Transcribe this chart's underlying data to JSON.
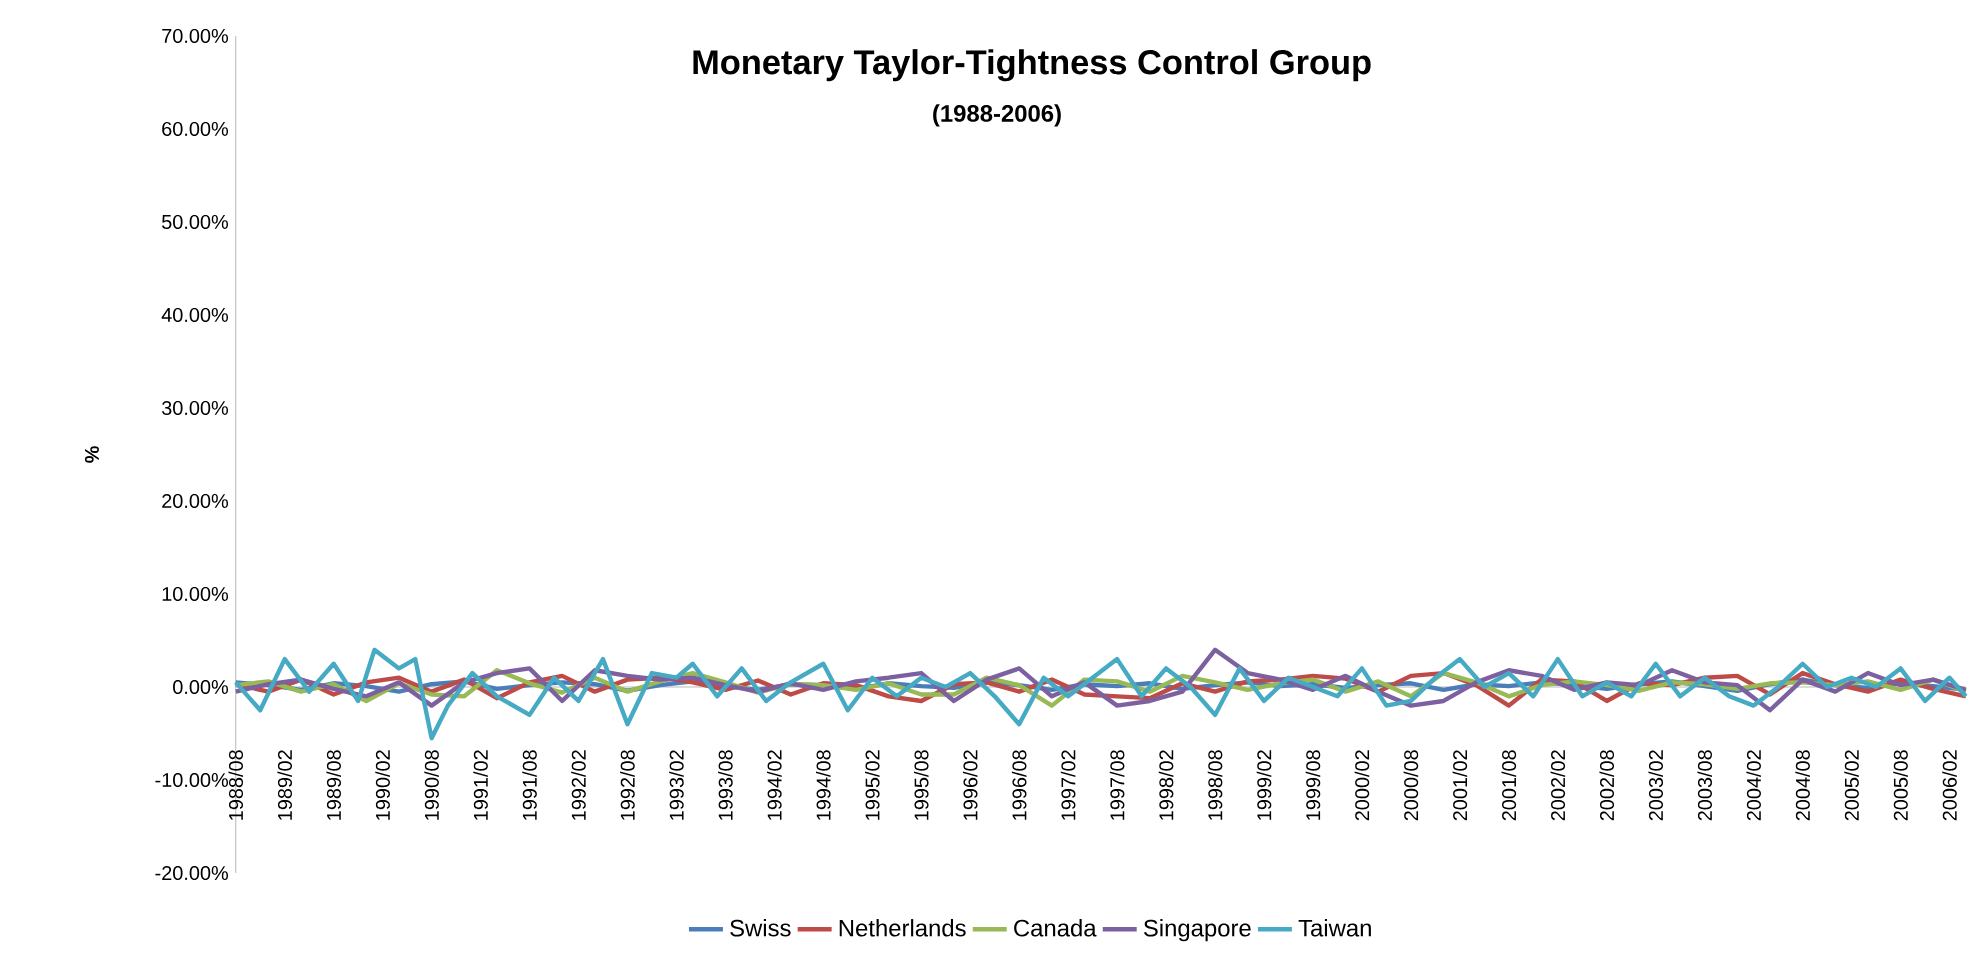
{
  "chart_data": {
    "type": "line",
    "title": "Monetary Taylor-Tightness   Control Group",
    "subtitle": "(1988-2006)",
    "ylabel": "%",
    "legend": "bottom",
    "marker": "none",
    "line_style": "solid",
    "x": [
      "1988-08",
      "1988-12",
      "1989-04",
      "1989-08",
      "1989-12",
      "1990-04",
      "1990-08",
      "1990-12",
      "1991-04",
      "1991-08",
      "1991-12",
      "1992-04",
      "1992-08",
      "1992-12",
      "1993-04",
      "1993-08",
      "1993-12",
      "1994-04",
      "1994-08",
      "1994-12",
      "1995-04",
      "1995-08",
      "1995-12",
      "1996-04",
      "1996-08",
      "1996-12",
      "1997-04",
      "1997-08",
      "1997-12",
      "1998-04",
      "1998-08",
      "1998-12",
      "1999-04",
      "1999-08",
      "1999-12",
      "2000-04",
      "2000-08",
      "2000-12",
      "2001-04",
      "2001-08",
      "2001-12",
      "2002-04",
      "2002-08",
      "2002-12",
      "2003-04",
      "2003-08",
      "2003-12",
      "2004-04",
      "2004-08",
      "2004-12",
      "2005-04",
      "2005-08",
      "2005-12",
      "2006-04"
    ],
    "xlim": [
      "1988-08",
      "2006-04"
    ],
    "xticks": [
      {
        "value": "1988-08",
        "label": "1988/08"
      },
      {
        "value": "1989-02",
        "label": "1989/02"
      },
      {
        "value": "1989-08",
        "label": "1989/08"
      },
      {
        "value": "1990-02",
        "label": "1990/02"
      },
      {
        "value": "1990-08",
        "label": "1990/08"
      },
      {
        "value": "1991-02",
        "label": "1991/02"
      },
      {
        "value": "1991-08",
        "label": "1991/08"
      },
      {
        "value": "1992-02",
        "label": "1992/02"
      },
      {
        "value": "1992-08",
        "label": "1992/08"
      },
      {
        "value": "1993-02",
        "label": "1993/02"
      },
      {
        "value": "1993-08",
        "label": "1993/08"
      },
      {
        "value": "1994-02",
        "label": "1994/02"
      },
      {
        "value": "1994-08",
        "label": "1994/08"
      },
      {
        "value": "1995-02",
        "label": "1995/02"
      },
      {
        "value": "1995-08",
        "label": "1995/08"
      },
      {
        "value": "1996-02",
        "label": "1996/02"
      },
      {
        "value": "1996-08",
        "label": "1996/08"
      },
      {
        "value": "1997-02",
        "label": "1997/02"
      },
      {
        "value": "1997-08",
        "label": "1997/08"
      },
      {
        "value": "1998-02",
        "label": "1998/02"
      },
      {
        "value": "1998-08",
        "label": "1998/08"
      },
      {
        "value": "1999-02",
        "label": "1999/02"
      },
      {
        "value": "1999-08",
        "label": "1999/08"
      },
      {
        "value": "2000-02",
        "label": "2000/02"
      },
      {
        "value": "2000-08",
        "label": "2000/08"
      },
      {
        "value": "2001-02",
        "label": "2001/02"
      },
      {
        "value": "2001-08",
        "label": "2001/08"
      },
      {
        "value": "2002-02",
        "label": "2002/02"
      },
      {
        "value": "2002-08",
        "label": "2002/08"
      },
      {
        "value": "2003-02",
        "label": "2003/02"
      },
      {
        "value": "2003-08",
        "label": "2003/08"
      },
      {
        "value": "2004-02",
        "label": "2004/02"
      },
      {
        "value": "2004-08",
        "label": "2004/08"
      },
      {
        "value": "2005-02",
        "label": "2005/02"
      },
      {
        "value": "2005-08",
        "label": "2005/08"
      },
      {
        "value": "2006-02",
        "label": "2006/02"
      }
    ],
    "ylim": [
      -20,
      70
    ],
    "yticks": [
      {
        "value": -20,
        "label": "-20.00%"
      },
      {
        "value": -10,
        "label": "-10.00%"
      },
      {
        "value": 0,
        "label": "0.00%"
      },
      {
        "value": 10,
        "label": "10.00%"
      },
      {
        "value": 20,
        "label": "20.00%"
      },
      {
        "value": 30,
        "label": "30.00%"
      },
      {
        "value": 40,
        "label": "40.00%"
      },
      {
        "value": 50,
        "label": "50.00%"
      },
      {
        "value": 60,
        "label": "60.00%"
      },
      {
        "value": 70,
        "label": "70.00%"
      }
    ],
    "series": [
      {
        "name": "Swiss",
        "color": "#4a7ebb",
        "values": [
          0.5,
          0.2,
          -0.3,
          0.4,
          0.1,
          -0.5,
          0.3,
          0.6,
          -0.2,
          0.2,
          0.5,
          0.3,
          -0.4,
          0.2,
          0.6,
          0.1,
          -0.3,
          0.3,
          0.2,
          -0.2,
          0.4,
          0.1,
          -0.1,
          0.5,
          0.2,
          -0.3,
          0.3,
          0.1,
          0.4,
          -0.2,
          0.2,
          0.5,
          0.1,
          0.3,
          -0.1,
          0.2,
          0.4,
          -0.3,
          0.3,
          0.1,
          0.5,
          0.2,
          -0.2,
          0.3,
          0.6,
          0.1,
          -0.4,
          0.3,
          0.8,
          0.2,
          -0.1,
          0.4,
          0.1,
          -0.3
        ]
      },
      {
        "name": "Netherlands",
        "color": "#be4b48",
        "values": [
          0.3,
          -0.5,
          0.8,
          -0.8,
          0.5,
          1.0,
          -0.5,
          0.8,
          -1.2,
          0.5,
          1.2,
          -0.5,
          0.8,
          1.0,
          0.5,
          -0.3,
          0.7,
          -0.8,
          0.4,
          0.2,
          -1.0,
          -1.5,
          0.3,
          0.5,
          -0.5,
          0.8,
          -0.8,
          -1.0,
          -1.2,
          0.4,
          -0.5,
          0.6,
          0.8,
          1.2,
          0.9,
          -0.5,
          1.2,
          1.5,
          0.2,
          -2.0,
          0.8,
          0.6,
          -1.5,
          0.4,
          0.2,
          1.0,
          1.2,
          -0.8,
          1.5,
          0.3,
          -0.5,
          0.8,
          -0.2,
          -1.0
        ]
      },
      {
        "name": "Canada",
        "color": "#98b954",
        "values": [
          0.2,
          0.6,
          -0.5,
          0.3,
          -1.5,
          0.4,
          -0.8,
          -1.0,
          1.8,
          0.4,
          -0.6,
          1.0,
          -0.5,
          0.6,
          1.5,
          0.5,
          -0.6,
          0.3,
          0.2,
          -0.3,
          0.4,
          -0.8,
          -0.8,
          1.0,
          0.2,
          -2.0,
          0.8,
          0.6,
          -0.5,
          1.2,
          0.5,
          -0.3,
          0.4,
          0.8,
          -0.5,
          0.6,
          -1.0,
          1.5,
          0.5,
          -1.0,
          0.2,
          0.6,
          0.2,
          -0.4,
          0.5,
          0.3,
          -0.2,
          0.4,
          0.5,
          0.2,
          0.6,
          -0.3,
          0.8,
          -0.5
        ]
      },
      {
        "name": "Singapore",
        "color": "#7d60a0",
        "values": [
          -0.5,
          0.3,
          0.8,
          -0.2,
          -1.0,
          0.5,
          -2.0,
          0.5,
          1.5,
          2.0,
          -1.5,
          1.8,
          1.2,
          0.8,
          1.0,
          0.2,
          -0.5,
          0.4,
          -0.3,
          0.6,
          1.0,
          1.5,
          -1.5,
          0.8,
          2.0,
          -1.0,
          0.5,
          -2.0,
          -1.5,
          -0.5,
          4.0,
          1.5,
          0.8,
          -0.3,
          1.2,
          -0.5,
          -2.0,
          -1.5,
          0.5,
          1.8,
          1.2,
          -0.3,
          0.5,
          0.2,
          1.8,
          0.5,
          0.2,
          -2.5,
          0.8,
          -0.5,
          1.5,
          0.2,
          0.8,
          -0.3
        ]
      },
      {
        "name": "Taiwan",
        "color": "#46aac5",
        "x": [
          "1988-08",
          "1988-11",
          "1989-02",
          "1989-05",
          "1989-08",
          "1989-11",
          "1990-01",
          "1990-04",
          "1990-06",
          "1990-08",
          "1990-10",
          "1991-01",
          "1991-04",
          "1991-08",
          "1991-11",
          "1992-02",
          "1992-05",
          "1992-08",
          "1992-11",
          "1993-02",
          "1993-04",
          "1993-07",
          "1993-10",
          "1994-01",
          "1994-04",
          "1994-08",
          "1994-11",
          "1995-02",
          "1995-05",
          "1995-08",
          "1995-11",
          "1996-02",
          "1996-05",
          "1996-08",
          "1996-11",
          "1997-02",
          "1997-05",
          "1997-08",
          "1997-11",
          "1998-02",
          "1998-05",
          "1998-08",
          "1998-11",
          "1999-02",
          "1999-05",
          "1999-08",
          "1999-11",
          "2000-02",
          "2000-05",
          "2000-08",
          "2000-11",
          "2001-02",
          "2001-05",
          "2001-08",
          "2001-11",
          "2002-02",
          "2002-05",
          "2002-08",
          "2002-11",
          "2003-02",
          "2003-05",
          "2003-08",
          "2003-11",
          "2004-02",
          "2004-05",
          "2004-08",
          "2004-11",
          "2005-02",
          "2005-05",
          "2005-08",
          "2005-11",
          "2006-02",
          "2006-04"
        ],
        "values": [
          0.5,
          -2.5,
          3,
          -0.5,
          2.5,
          -1.5,
          4,
          2,
          3,
          -5.5,
          -2,
          1.5,
          -1,
          -3,
          1,
          -1.5,
          3,
          -4,
          1.5,
          1,
          2.5,
          -1,
          2,
          -1.5,
          0.5,
          2.5,
          -2.5,
          1,
          -1,
          1,
          0,
          1.5,
          -1,
          -4,
          1,
          -1,
          1,
          3,
          -1,
          2,
          0,
          -3,
          2,
          -1.5,
          1,
          0,
          -1,
          2,
          -2,
          -1.5,
          1,
          3,
          0,
          1.5,
          -1,
          3,
          -1,
          0.5,
          -1,
          2.5,
          -1,
          1,
          -1,
          -2,
          0,
          2.5,
          0,
          1,
          0,
          2,
          -1.5,
          1,
          -1
        ]
      }
    ]
  }
}
